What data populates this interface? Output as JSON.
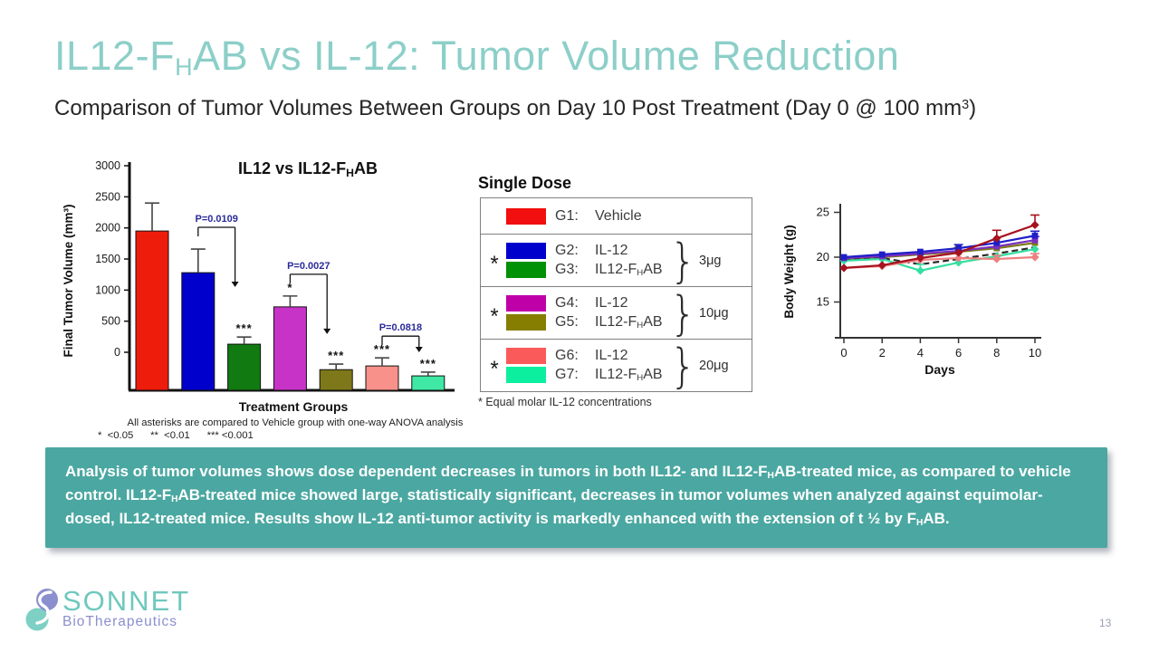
{
  "slide": {
    "title_rich": [
      {
        "t": "IL12-F"
      },
      {
        "t": "H",
        "sub": true
      },
      {
        "t": "AB vs IL-12: Tumor Volume Reduction"
      }
    ],
    "subtitle_rich": [
      {
        "t": "Comparison of Tumor Volumes Between Groups on Day 10 Post Treatment (Day 0 @ 100 mm"
      },
      {
        "t": "3",
        "sup": true
      },
      {
        "t": ")"
      }
    ],
    "page_number": "13",
    "accent_teal": "#8CCFC8",
    "box_teal": "#4BA7A1"
  },
  "legend": {
    "heading": "Single Dose",
    "footnote": "* Equal molar IL-12 concentrations",
    "rows": [
      {
        "asterisk": "",
        "dose": "",
        "brace": false,
        "entries": [
          {
            "color": "#F20F0F",
            "code": "G1:",
            "name_rich": [
              {
                "t": "Vehicle"
              }
            ]
          }
        ]
      },
      {
        "asterisk": "*",
        "dose": "3μg",
        "brace": true,
        "entries": [
          {
            "color": "#0000CC",
            "code": "G2:",
            "name_rich": [
              {
                "t": "IL-12"
              }
            ]
          },
          {
            "color": "#009106",
            "code": "G3:",
            "name_rich": [
              {
                "t": "IL12-F"
              },
              {
                "t": "H",
                "sub": true
              },
              {
                "t": "AB"
              }
            ]
          }
        ]
      },
      {
        "asterisk": "*",
        "dose": "10μg",
        "brace": true,
        "entries": [
          {
            "color": "#BF00A8",
            "code": "G4:",
            "name_rich": [
              {
                "t": "IL-12"
              }
            ]
          },
          {
            "color": "#857E00",
            "code": "G5:",
            "name_rich": [
              {
                "t": "IL12-F"
              },
              {
                "t": "H",
                "sub": true
              },
              {
                "t": "AB"
              }
            ]
          }
        ]
      },
      {
        "asterisk": "*",
        "dose": "20μg",
        "brace": true,
        "entries": [
          {
            "color": "#FB5A5A",
            "code": "G6:",
            "name_rich": [
              {
                "t": "IL-12"
              }
            ]
          },
          {
            "color": "#0CEF9E",
            "code": "G7:",
            "name_rich": [
              {
                "t": "IL12-F"
              },
              {
                "t": "H",
                "sub": true
              },
              {
                "t": "AB"
              }
            ]
          }
        ]
      }
    ]
  },
  "chart_data": [
    {
      "id": "tumor",
      "type": "bar",
      "title_rich": [
        {
          "t": "IL12 vs IL12-F"
        },
        {
          "t": "H",
          "sub": true
        },
        {
          "t": "AB"
        }
      ],
      "ylabel": "Final Tumor Volume (mm³)",
      "xlabel": "Treatment Groups",
      "categories": [
        "G1 Vehicle",
        "G2 IL-12 3μg",
        "G3 IL12-FHAB 3μg",
        "G4 IL-12 10μg",
        "G5 IL12-FHAB 10μg",
        "G6 IL-12 20μg",
        "G7 IL12-FHAB 20μg"
      ],
      "values": [
        1950,
        1280,
        130,
        730,
        -280,
        -220,
        -380
      ],
      "errors": [
        450,
        380,
        115,
        175,
        90,
        130,
        60
      ],
      "colors": [
        "#EE1C0A",
        "#0000CC",
        "#117A11",
        "#C733C7",
        "#7E781A",
        "#F8918A",
        "#3FE8A4"
      ],
      "sig": [
        "",
        "",
        "***",
        "*",
        "***",
        "***",
        "***"
      ],
      "pvalues": [
        {
          "label": "P=0.0109",
          "from": 1,
          "to": 2
        },
        {
          "label": "P=0.0027",
          "from": 3,
          "to": 4
        },
        {
          "label": "P=0.0818",
          "from": 5,
          "to": 6
        }
      ],
      "pvalue_color": "#2B2B9B",
      "yticks": [
        0,
        500,
        1000,
        1500,
        2000,
        2500,
        3000
      ],
      "ylim": [
        -612,
        3000
      ],
      "footnote1": "All asterisks are compared to Vehicle group with one-way ANOVA analysis",
      "footnote2": "*  <0.05      **  <0.01      *** <0.001"
    },
    {
      "id": "bodyweight",
      "type": "line",
      "ylabel": "Body Weight (g)",
      "xlabel": "Days",
      "x": [
        0,
        2,
        4,
        6,
        8,
        10
      ],
      "xticks": [
        0,
        2,
        4,
        6,
        8,
        10
      ],
      "yticks": [
        15,
        20,
        25
      ],
      "ylim": [
        11,
        26.5
      ],
      "series": [
        {
          "name": "G5 IL12-FHAB 10μg",
          "color": "#7C7A17",
          "marker": "square",
          "dash": false,
          "values": [
            19.8,
            20.0,
            20.3,
            20.6,
            21.0,
            21.6
          ],
          "errors": [
            null,
            null,
            null,
            0.5,
            null,
            null
          ]
        },
        {
          "name": "G3 IL12-FHAB 3μg",
          "color": "#2A2A2A",
          "marker": "none",
          "dash": true,
          "values": [
            19.7,
            19.9,
            19.2,
            19.8,
            20.4,
            21.1
          ],
          "errors": [
            null,
            null,
            null,
            null,
            null,
            null
          ]
        },
        {
          "name": "G7 IL12-FHAB 20μg",
          "color": "#35DFA0",
          "marker": "diamond",
          "dash": false,
          "values": [
            19.6,
            19.8,
            18.5,
            19.4,
            20.1,
            20.9
          ],
          "errors": [
            null,
            null,
            0.7,
            null,
            null,
            null
          ]
        },
        {
          "name": "G6 IL-12 20μg",
          "color": "#EE8080",
          "marker": "diamond",
          "dash": false,
          "values": [
            18.8,
            19.0,
            19.7,
            19.9,
            19.8,
            20.0
          ],
          "errors": [
            null,
            null,
            null,
            null,
            0.4,
            0.4
          ]
        },
        {
          "name": "G4 IL-12 10μg",
          "color": "#7B2FBF",
          "marker": "square",
          "dash": false,
          "values": [
            19.9,
            20.1,
            20.4,
            20.7,
            21.2,
            21.9
          ],
          "errors": [
            null,
            null,
            null,
            null,
            null,
            0.4
          ]
        },
        {
          "name": "G2 IL-12 3μg",
          "color": "#1F1FC8",
          "marker": "square",
          "dash": false,
          "values": [
            20.0,
            20.3,
            20.6,
            21.0,
            21.6,
            22.4
          ],
          "errors": [
            null,
            null,
            null,
            0.4,
            null,
            0.5
          ]
        },
        {
          "name": "G1 Vehicle",
          "color": "#A6121E",
          "marker": "diamond",
          "dash": false,
          "values": [
            18.8,
            19.1,
            19.9,
            20.5,
            22.1,
            23.6
          ],
          "errors": [
            null,
            null,
            null,
            null,
            0.9,
            1.1
          ]
        }
      ]
    }
  ],
  "summary": {
    "text_rich": [
      {
        "t": "Analysis of tumor volumes shows dose dependent decreases in tumors in both IL12- and IL12-F"
      },
      {
        "t": "H",
        "sub": true
      },
      {
        "t": "AB-treated mice, as compared to vehicle control. IL12-F"
      },
      {
        "t": "H",
        "sub": true
      },
      {
        "t": "AB-treated mice showed large, statistically significant, decreases in tumor volumes when analyzed against equimolar-dosed, IL12-treated mice. Results show IL-12 anti-tumor activity is markedly enhanced with the extension of t ½ by F"
      },
      {
        "t": "H",
        "sub": true
      },
      {
        "t": "AB."
      }
    ]
  },
  "logo": {
    "name": "SONNET",
    "subtext": "BioTherapeutics"
  }
}
